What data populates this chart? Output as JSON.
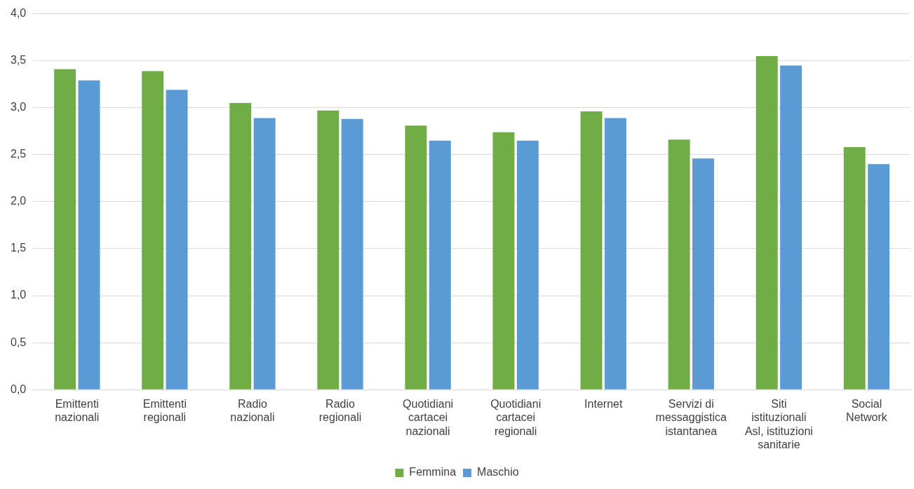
{
  "chart_data": {
    "type": "bar",
    "categories": [
      "Emittenti nazionali",
      "Emittenti regionali",
      "Radio nazionali",
      "Radio regionali",
      "Quotidiani cartacei nazionali",
      "Quotidiani cartacei regionali",
      "Internet",
      "Servizi di messaggistica istantanea",
      "Siti istituzionali Asl, istituzioni sanitarie",
      "Social Network"
    ],
    "series": [
      {
        "name": "Femmina",
        "color": "#70ad47",
        "values": [
          3.41,
          3.39,
          3.05,
          2.97,
          2.81,
          2.74,
          2.96,
          2.66,
          3.55,
          2.58
        ]
      },
      {
        "name": "Maschio",
        "color": "#5b9bd5",
        "values": [
          3.29,
          3.19,
          2.89,
          2.88,
          2.65,
          2.65,
          2.89,
          2.46,
          3.45,
          2.4
        ]
      }
    ],
    "ylim": [
      0,
      4
    ],
    "yticks": [
      {
        "value": 0,
        "label": "0,0"
      },
      {
        "value": 0.5,
        "label": "0,5"
      },
      {
        "value": 1,
        "label": "1,0"
      },
      {
        "value": 1.5,
        "label": "1,5"
      },
      {
        "value": 2,
        "label": "2,0"
      },
      {
        "value": 2.5,
        "label": "2,5"
      },
      {
        "value": 3,
        "label": "3,0"
      },
      {
        "value": 3.5,
        "label": "3,5"
      },
      {
        "value": 4,
        "label": "4,0"
      }
    ],
    "grid": "y",
    "legend": "bottom"
  }
}
